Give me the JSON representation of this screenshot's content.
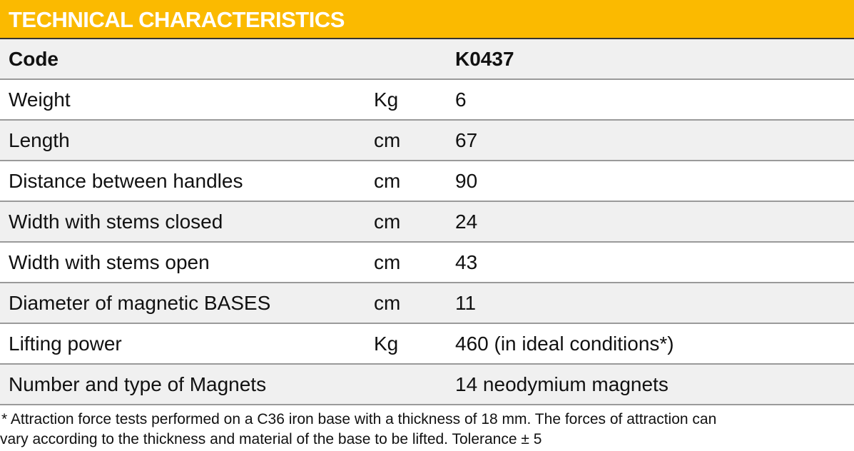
{
  "title": "TECHNICAL CHARACTERISTICS",
  "colors": {
    "header": "#FBBA00",
    "row_alt": "#f0f0f0"
  },
  "header": {
    "label": "Code",
    "unit": "",
    "value": "K0437"
  },
  "rows": [
    {
      "label": "Weight",
      "unit": "Kg",
      "value": "6"
    },
    {
      "label": "Length",
      "unit": "cm",
      "value": "67"
    },
    {
      "label": "Distance between handles",
      "unit": "cm",
      "value": "90"
    },
    {
      "label": "Width with stems closed",
      "unit": "cm",
      "value": "24"
    },
    {
      "label": "Width with stems open",
      "unit": "cm",
      "value": "43"
    },
    {
      "label": "Diameter of magnetic BASES",
      "unit": "cm",
      "value": "11"
    },
    {
      "label": "Lifting power",
      "unit": "Kg",
      "value": "460 (in ideal conditions*)"
    },
    {
      "label": "Number and type of Magnets",
      "unit": "",
      "value": "14 neodymium magnets"
    }
  ],
  "footnote": {
    "line1": "* Attraction force tests performed on a C36 iron base with a thickness of 18 mm. The forces of attraction can",
    "line2": "vary according to the thickness and material of the base to be lifted. Tolerance ± 5"
  }
}
